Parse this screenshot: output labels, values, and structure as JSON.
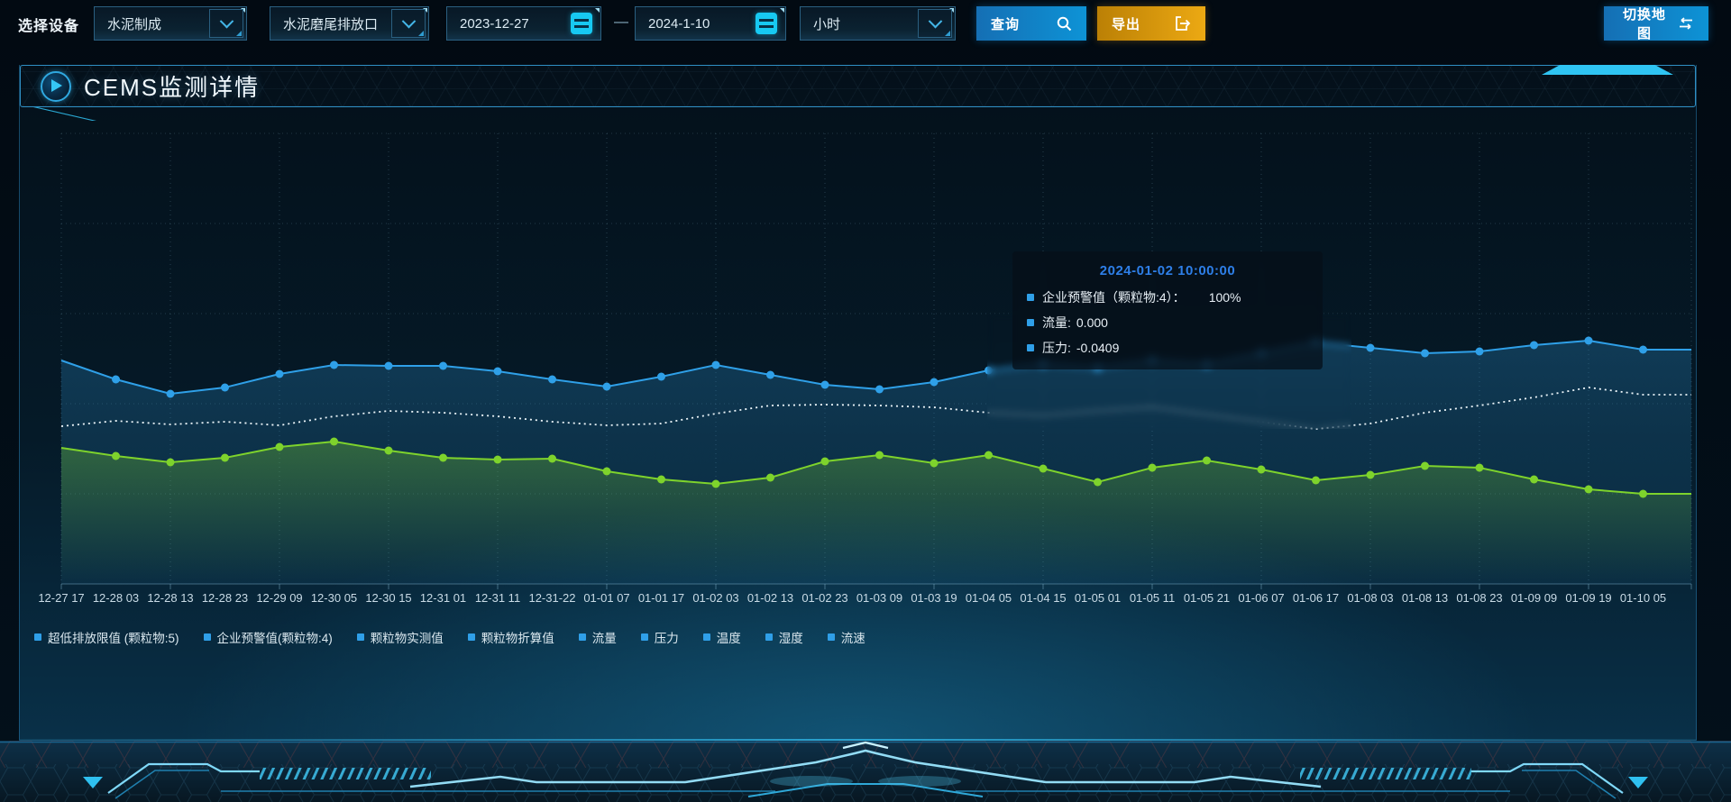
{
  "toolbar": {
    "device_label": "选择设备",
    "dropdown_product": "水泥制成",
    "dropdown_outlet": "水泥磨尾排放口",
    "date_start": "2023-12-27",
    "date_separator": "—",
    "date_end": "2024-1-10",
    "dropdown_interval": "小时",
    "query_label": "查询",
    "export_label": "导出",
    "switch_map_label": "切换地图"
  },
  "panel": {
    "title": "CEMS监测详情"
  },
  "tooltip": {
    "title": "2024-01-02 10:00:00",
    "rows": [
      {
        "label": "企业预警值（颗粒物:4）：",
        "value": "100%"
      },
      {
        "label": "流量:",
        "value": "0.000"
      },
      {
        "label": "压力:",
        "value": "-0.0409"
      }
    ]
  },
  "colors": {
    "accent_cyan": "#35c7f5",
    "line_blue": "#2fa0e8",
    "line_green": "#7ed32c",
    "line_white_dotted": "#edf6fa",
    "button_blue": "#0d93d6",
    "button_orange": "#eca913",
    "tooltip_title_blue": "#2e7fe8",
    "legend_marker": "#2f9fe8"
  },
  "chart_data": {
    "type": "line",
    "x": [
      "12-27 17",
      "12-28 03",
      "12-28 13",
      "12-28 23",
      "12-29 09",
      "12-30 05",
      "12-30 15",
      "12-31 01",
      "12-31 11",
      "12-31-22",
      "01-01 07",
      "01-01 17",
      "01-02 03",
      "01-02 13",
      "01-02 23",
      "01-03 09",
      "01-03 19",
      "01-04 05",
      "01-04 15",
      "01-05 01",
      "01-05 11",
      "01-05 21",
      "01-06 07",
      "01-06 17",
      "01-08 03",
      "01-08 13",
      "01-08 23",
      "01-09 09",
      "01-09 19",
      "01-10 05"
    ],
    "series": [
      {
        "name": "series-blue",
        "color": "#2fa0e8",
        "style": "solid-markers",
        "area": true,
        "values": [
          49.6,
          45.4,
          42.2,
          43.6,
          46.6,
          48.6,
          48.4,
          48.4,
          47.2,
          45.4,
          43.8,
          46.0,
          48.6,
          46.4,
          44.2,
          43.2,
          44.8,
          47.4,
          48.8,
          48.0,
          49.6,
          48.8,
          51.2,
          53.6,
          52.4,
          51.2,
          51.6,
          53.0,
          54.0,
          52.0
        ]
      },
      {
        "name": "series-white-dotted",
        "color": "#edf6fa",
        "style": "dotted",
        "area": false,
        "values": [
          35.0,
          36.2,
          35.4,
          36.0,
          35.2,
          37.2,
          38.4,
          38.0,
          37.2,
          36.0,
          35.2,
          35.6,
          37.8,
          39.6,
          39.8,
          39.6,
          39.2,
          38.0,
          37.4,
          38.4,
          39.2,
          37.6,
          36.0,
          34.4,
          35.6,
          38.0,
          39.6,
          41.4,
          43.6,
          42.0
        ]
      },
      {
        "name": "series-green",
        "color": "#7ed32c",
        "style": "solid-markers",
        "area": true,
        "values": [
          30.2,
          28.4,
          27.0,
          28.0,
          30.4,
          31.6,
          29.6,
          28.0,
          27.6,
          27.8,
          25.0,
          23.2,
          22.2,
          23.6,
          27.2,
          28.6,
          26.8,
          28.6,
          25.6,
          22.6,
          25.8,
          27.4,
          25.4,
          23.0,
          24.2,
          26.2,
          25.8,
          23.2,
          21.0,
          20.0
        ]
      }
    ],
    "legend": [
      "超低排放限值 (颗粒物:5)",
      "企业预警值(颗粒物:4)",
      "颗粒物实测值",
      "颗粒物折算值",
      "流量",
      "压力",
      "温度",
      "湿度",
      "流速"
    ],
    "title": "",
    "xlabel": "",
    "ylabel": "",
    "ylim": [
      0,
      100
    ],
    "grid": true,
    "legend_position": "bottom"
  }
}
